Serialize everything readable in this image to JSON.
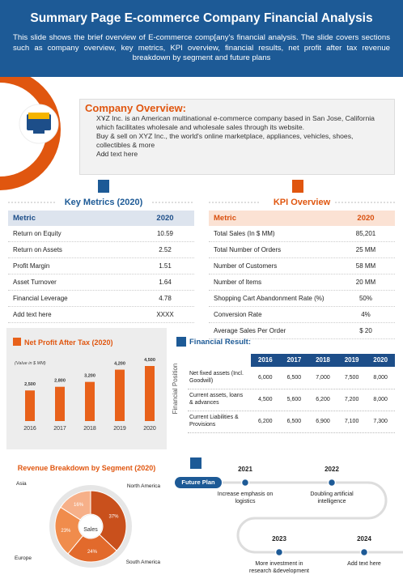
{
  "header": {
    "title": "Summary Page E-commerce Company Financial Analysis",
    "description": "This slide shows the brief overview of E-commerce comp[any's financial analysis. The slide covers sections such as company overview, key metrics, KPI overview, financial results, net profit after tax revenue breakdown by segment and future plans"
  },
  "company_overview": {
    "title": "Company Overview:",
    "bullets": [
      "XYZ Inc. is an American multinational e-commerce company based in San Jose, California which facilitates wholesale and wholesale sales through its website.",
      "Buy & sell on XYZ Inc., the world's online marketplace, appliances, vehicles, shoes, collectibles & more",
      "Add text here"
    ]
  },
  "key_metrics": {
    "title": "Key Metrics (2020)",
    "header": [
      "Metric",
      "2020"
    ],
    "rows": [
      [
        "Return on Equity",
        "10.59"
      ],
      [
        "Return on Assets",
        "2.52"
      ],
      [
        "Profit Margin",
        "1.51"
      ],
      [
        "Asset Turnover",
        "1.64"
      ],
      [
        "Financial Leverage",
        "4.78"
      ],
      [
        "Add text here",
        "XXXX"
      ]
    ]
  },
  "kpi_overview": {
    "title": "KPI Overview",
    "header": [
      "Metric",
      "2020"
    ],
    "rows": [
      [
        "Total Sales (In $ MM)",
        "85,201"
      ],
      [
        "Total Number of Orders",
        "25 MM"
      ],
      [
        "Number of Customers",
        "58 MM"
      ],
      [
        "Number of Items",
        "20 MM"
      ],
      [
        "Shopping Cart Abandonment Rate (%)",
        "50%"
      ],
      [
        "Conversion Rate",
        "4%"
      ],
      [
        "Average Sales Per Order",
        "$ 20"
      ]
    ]
  },
  "financial_result": {
    "title": "Financial Result:",
    "axis_label": "Financial Position",
    "columns": [
      "2016",
      "2017",
      "2018",
      "2019",
      "2020"
    ],
    "rows": [
      {
        "label": "Net fixed assets (Incl. Goodwill)",
        "values": [
          "6,000",
          "6,500",
          "7,000",
          "7,500",
          "8,000"
        ]
      },
      {
        "label": "Current assets, loans & advances",
        "values": [
          "4,500",
          "5,600",
          "6,200",
          "7,200",
          "8,000"
        ]
      },
      {
        "label": "Current Liabilities & Provisions",
        "values": [
          "6,200",
          "6,500",
          "6,900",
          "7,100",
          "7,300"
        ]
      }
    ]
  },
  "future_plan": {
    "title": "Future Plan",
    "milestones": [
      {
        "year": "2021",
        "text": "Increase emphasis on logistics"
      },
      {
        "year": "2022",
        "text": "Doubling artificial intelligence"
      },
      {
        "year": "2023",
        "text": "More investment in research &development"
      },
      {
        "year": "2024",
        "text": "Add text here"
      }
    ]
  },
  "chart_data": [
    {
      "type": "bar",
      "title": "Net Profit After Tax (2020)",
      "subtitle": "(Value in $ MM)",
      "categories": [
        "2016",
        "2017",
        "2018",
        "2019",
        "2020"
      ],
      "values": [
        2500,
        2800,
        3200,
        4200,
        4500
      ],
      "value_labels": [
        "2,500",
        "2,800",
        "3,200",
        "4,200",
        "4,500"
      ],
      "color": "#e8611a"
    },
    {
      "type": "pie",
      "title": "Revenue Breakdown by Segment (2020)",
      "center_label": "Sales",
      "categories": [
        "North America",
        "South America",
        "Europe",
        "Asia"
      ],
      "values": [
        37,
        24,
        23,
        16
      ],
      "value_labels": [
        "37%",
        "24%",
        "23%",
        "16%"
      ],
      "colors": [
        "#c9501c",
        "#e26a2c",
        "#f08c4c",
        "#f6b089"
      ]
    }
  ]
}
